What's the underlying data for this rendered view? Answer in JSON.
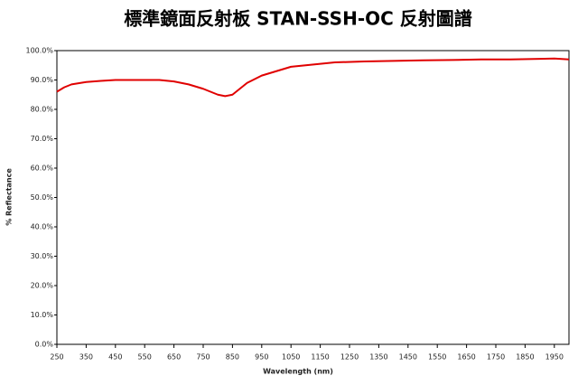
{
  "chart_data": {
    "type": "line",
    "title": "標準鏡面反射板 STAN-SSH-OC 反射圖譜",
    "x_label": "Wavelength (nm)",
    "y_label": "% Reflectance",
    "x": [
      250,
      275,
      300,
      350,
      400,
      450,
      500,
      550,
      600,
      650,
      700,
      750,
      800,
      825,
      850,
      875,
      900,
      950,
      1000,
      1050,
      1100,
      1150,
      1200,
      1300,
      1400,
      1500,
      1600,
      1700,
      1800,
      1900,
      1950,
      2000
    ],
    "series": [
      {
        "name": "% Reflectance",
        "color": "#e00000",
        "values": [
          86,
          87.5,
          88.5,
          89.3,
          89.7,
          90,
          90,
          90,
          90,
          89.5,
          88.5,
          87,
          85,
          84.5,
          85,
          87,
          89,
          91.5,
          93,
          94.5,
          95,
          95.5,
          96,
          96.3,
          96.5,
          96.7,
          96.8,
          97,
          97,
          97.2,
          97.3,
          97
        ]
      }
    ],
    "xlim": [
      250,
      2000
    ],
    "ylim": [
      0,
      100
    ],
    "xticks": [
      250,
      350,
      450,
      550,
      650,
      750,
      850,
      950,
      1050,
      1150,
      1250,
      1350,
      1450,
      1550,
      1650,
      1750,
      1850,
      1950
    ],
    "yticks": [
      {
        "value": 0,
        "label": "0.0%"
      },
      {
        "value": 10,
        "label": "10.0%"
      },
      {
        "value": 20,
        "label": "20.0%"
      },
      {
        "value": 30,
        "label": "30.0%"
      },
      {
        "value": 40,
        "label": "40.0%"
      },
      {
        "value": 50,
        "label": "50.0%"
      },
      {
        "value": 60,
        "label": "60.0%"
      },
      {
        "value": 70,
        "label": "70.0%"
      },
      {
        "value": 80,
        "label": "80.0%"
      },
      {
        "value": 90,
        "label": "90.0%"
      },
      {
        "value": 100,
        "label": "100.0%"
      }
    ],
    "grid": false
  }
}
